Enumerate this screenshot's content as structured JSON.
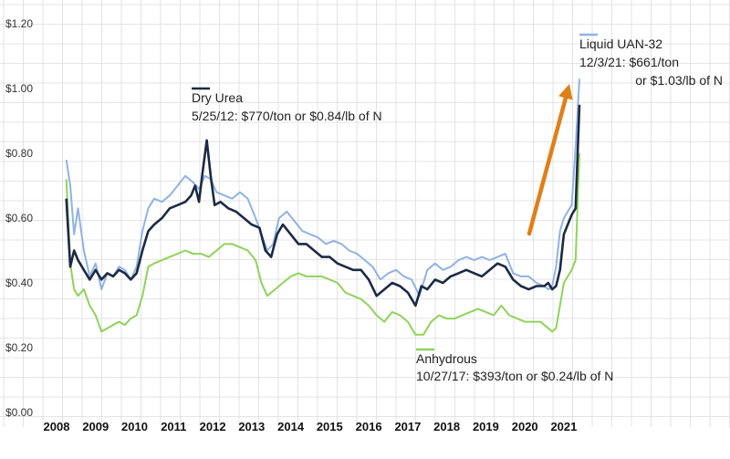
{
  "chart_data": {
    "type": "line",
    "title": "",
    "xlabel": "",
    "ylabel": "",
    "xlim": [
      2008.0,
      2021.75
    ],
    "ylim": [
      0,
      1.2
    ],
    "x_ticks": [
      "2008",
      "2009",
      "2010",
      "2011",
      "2012",
      "2013",
      "2014",
      "2015",
      "2016",
      "2017",
      "2018",
      "2019",
      "2020",
      "2021"
    ],
    "y_ticks": [
      "$0.00",
      "$0.20",
      "$0.40",
      "$0.60",
      "$0.80",
      "$1.00",
      "$1.20"
    ],
    "grid": true,
    "legend": "none",
    "colors": {
      "dry_urea": "#1c2a44",
      "liquid_uan32": "#8fb3e3",
      "anhydrous": "#8fd35a",
      "arrow": "#e07f17",
      "grid": "#dcdcdc"
    },
    "series": [
      {
        "key": "uan32",
        "x": [
          2008.25,
          2008.35,
          2008.45,
          2008.55,
          2008.7,
          2008.85,
          2009.0,
          2009.15,
          2009.3,
          2009.45,
          2009.6,
          2009.75,
          2009.9,
          2010.05,
          2010.2,
          2010.35,
          2010.5,
          2010.7,
          2010.9,
          2011.1,
          2011.3,
          2011.5,
          2011.65,
          2011.8,
          2011.95,
          2012.1,
          2012.3,
          2012.5,
          2012.7,
          2012.9,
          2013.1,
          2013.25,
          2013.4,
          2013.55,
          2013.7,
          2013.9,
          2014.1,
          2014.3,
          2014.5,
          2014.7,
          2014.9,
          2015.1,
          2015.3,
          2015.5,
          2015.7,
          2015.9,
          2016.1,
          2016.3,
          2016.5,
          2016.7,
          2016.9,
          2017.1,
          2017.3,
          2017.5,
          2017.7,
          2017.9,
          2018.1,
          2018.3,
          2018.5,
          2018.7,
          2018.9,
          2019.1,
          2019.3,
          2019.5,
          2019.7,
          2019.9,
          2020.1,
          2020.3,
          2020.5,
          2020.6,
          2020.7,
          2020.8,
          2020.9,
          2021.0,
          2021.1,
          2021.2,
          2021.3,
          2021.4
        ],
        "y": [
          0.78,
          0.7,
          0.55,
          0.63,
          0.5,
          0.42,
          0.46,
          0.38,
          0.43,
          0.42,
          0.45,
          0.44,
          0.41,
          0.45,
          0.56,
          0.63,
          0.66,
          0.65,
          0.67,
          0.7,
          0.73,
          0.71,
          0.69,
          0.73,
          0.72,
          0.68,
          0.67,
          0.66,
          0.68,
          0.66,
          0.6,
          0.55,
          0.5,
          0.52,
          0.6,
          0.62,
          0.59,
          0.56,
          0.55,
          0.54,
          0.52,
          0.53,
          0.52,
          0.5,
          0.49,
          0.47,
          0.45,
          0.41,
          0.43,
          0.44,
          0.42,
          0.41,
          0.36,
          0.44,
          0.46,
          0.44,
          0.45,
          0.47,
          0.48,
          0.47,
          0.48,
          0.47,
          0.48,
          0.49,
          0.43,
          0.42,
          0.42,
          0.4,
          0.39,
          0.38,
          0.39,
          0.45,
          0.56,
          0.6,
          0.62,
          0.64,
          0.82,
          1.03
        ]
      },
      {
        "key": "urea",
        "x": [
          2008.25,
          2008.35,
          2008.45,
          2008.55,
          2008.7,
          2008.85,
          2009.0,
          2009.15,
          2009.3,
          2009.45,
          2009.6,
          2009.75,
          2009.9,
          2010.05,
          2010.2,
          2010.35,
          2010.5,
          2010.7,
          2010.9,
          2011.1,
          2011.3,
          2011.45,
          2011.55,
          2011.65,
          2011.75,
          2011.85,
          2011.95,
          2012.05,
          2012.2,
          2012.4,
          2012.6,
          2012.8,
          2013.0,
          2013.2,
          2013.35,
          2013.5,
          2013.65,
          2013.8,
          2014.0,
          2014.2,
          2014.4,
          2014.6,
          2014.8,
          2015.0,
          2015.2,
          2015.4,
          2015.6,
          2015.8,
          2016.0,
          2016.2,
          2016.4,
          2016.6,
          2016.8,
          2017.0,
          2017.2,
          2017.35,
          2017.5,
          2017.7,
          2017.9,
          2018.1,
          2018.3,
          2018.5,
          2018.7,
          2018.9,
          2019.1,
          2019.3,
          2019.5,
          2019.7,
          2019.9,
          2020.1,
          2020.3,
          2020.5,
          2020.6,
          2020.7,
          2020.8,
          2020.9,
          2021.0,
          2021.1,
          2021.2,
          2021.3,
          2021.4
        ],
        "y": [
          0.66,
          0.45,
          0.5,
          0.47,
          0.44,
          0.41,
          0.44,
          0.41,
          0.43,
          0.42,
          0.44,
          0.43,
          0.41,
          0.43,
          0.5,
          0.56,
          0.58,
          0.6,
          0.63,
          0.64,
          0.65,
          0.67,
          0.7,
          0.65,
          0.75,
          0.84,
          0.73,
          0.64,
          0.65,
          0.63,
          0.62,
          0.6,
          0.58,
          0.57,
          0.5,
          0.48,
          0.55,
          0.58,
          0.55,
          0.52,
          0.52,
          0.5,
          0.48,
          0.48,
          0.46,
          0.45,
          0.44,
          0.44,
          0.41,
          0.36,
          0.38,
          0.4,
          0.39,
          0.37,
          0.33,
          0.39,
          0.38,
          0.41,
          0.4,
          0.42,
          0.43,
          0.44,
          0.43,
          0.42,
          0.44,
          0.46,
          0.45,
          0.41,
          0.39,
          0.38,
          0.39,
          0.39,
          0.4,
          0.38,
          0.39,
          0.44,
          0.55,
          0.58,
          0.61,
          0.63,
          0.95
        ]
      },
      {
        "key": "anhydrous",
        "x": [
          2008.25,
          2008.35,
          2008.45,
          2008.55,
          2008.7,
          2008.85,
          2009.0,
          2009.15,
          2009.3,
          2009.45,
          2009.6,
          2009.75,
          2009.9,
          2010.05,
          2010.2,
          2010.35,
          2010.5,
          2010.7,
          2010.9,
          2011.1,
          2011.3,
          2011.5,
          2011.7,
          2011.9,
          2012.1,
          2012.3,
          2012.5,
          2012.7,
          2012.9,
          2013.1,
          2013.25,
          2013.4,
          2013.6,
          2013.8,
          2014.0,
          2014.2,
          2014.4,
          2014.6,
          2014.8,
          2015.0,
          2015.2,
          2015.4,
          2015.6,
          2015.8,
          2016.0,
          2016.2,
          2016.4,
          2016.6,
          2016.8,
          2017.0,
          2017.2,
          2017.4,
          2017.6,
          2017.8,
          2018.0,
          2018.2,
          2018.4,
          2018.6,
          2018.8,
          2019.0,
          2019.2,
          2019.4,
          2019.6,
          2019.8,
          2020.0,
          2020.2,
          2020.4,
          2020.6,
          2020.7,
          2020.8,
          2020.9,
          2021.0,
          2021.1,
          2021.2,
          2021.3,
          2021.4
        ],
        "y": [
          0.72,
          0.46,
          0.38,
          0.36,
          0.38,
          0.33,
          0.3,
          0.25,
          0.26,
          0.27,
          0.28,
          0.27,
          0.29,
          0.3,
          0.36,
          0.45,
          0.46,
          0.47,
          0.48,
          0.49,
          0.5,
          0.49,
          0.49,
          0.48,
          0.5,
          0.52,
          0.52,
          0.51,
          0.5,
          0.47,
          0.4,
          0.36,
          0.38,
          0.4,
          0.42,
          0.43,
          0.42,
          0.42,
          0.42,
          0.41,
          0.4,
          0.37,
          0.36,
          0.35,
          0.33,
          0.3,
          0.28,
          0.31,
          0.3,
          0.28,
          0.24,
          0.24,
          0.28,
          0.3,
          0.29,
          0.29,
          0.3,
          0.31,
          0.32,
          0.31,
          0.3,
          0.33,
          0.3,
          0.29,
          0.28,
          0.28,
          0.28,
          0.26,
          0.25,
          0.26,
          0.33,
          0.4,
          0.42,
          0.44,
          0.47,
          0.8
        ]
      }
    ],
    "annotations": [
      {
        "key": "urea",
        "lines": [
          "Dry Urea",
          "5/25/12: $770/ton or $0.84/lb of N"
        ]
      },
      {
        "key": "uan32",
        "lines": [
          "Liquid UAN-32",
          "12/3/21: $661/ton",
          "or $1.03/lb of N"
        ]
      },
      {
        "key": "anhydrous",
        "lines": [
          "Anhydrous",
          "10/27/17: $393/ton or $0.24/lb of N"
        ]
      }
    ]
  }
}
